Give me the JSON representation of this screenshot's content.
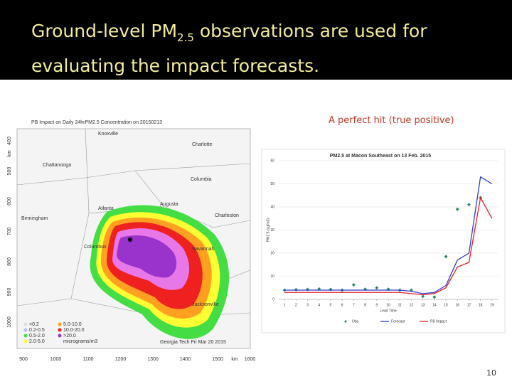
{
  "slide": {
    "title": [
      "Ground-level PM",
      "2.5",
      " observations are used for",
      "evaluating the impact forecasts."
    ],
    "caption": "A perfect hit (true positive)",
    "page_number": "10"
  },
  "map": {
    "title": "PB Impact on Daily 24hrPM2.5 Concentration on 20150213",
    "cities": [
      "Knoxville",
      "Charlotte",
      "Chattanooga",
      "Columbia",
      "Atlanta",
      "Augusta",
      "Birmingham",
      "Charleston",
      "Columbus",
      "Savannah",
      "Jacksonville"
    ],
    "y_axis_labels": [
      "400",
      "500",
      "600",
      "700",
      "800",
      "900",
      "1000"
    ],
    "y_unit": "km",
    "x_axis_labels": [
      "900",
      "1000",
      "1100",
      "1200",
      "1300",
      "1400",
      "1500",
      "1600"
    ],
    "x_unit": "km",
    "legend": [
      "<0.2",
      "0.2-0.5",
      "0.5-2.0",
      "2.0-5.0",
      "5.0-10.0",
      "10.0-20.0",
      ">20.0"
    ],
    "unit_label": "micrograms/m3",
    "footer": "Georgia Tech Fri Mar 20 2015"
  },
  "chart_data": {
    "type": "line",
    "title": "PM2.5 at Macon Southeast on 13 Feb. 2015",
    "x_label": "Lead Time",
    "y_label": "PM2.5 (ug/m3)",
    "x": [
      1,
      2,
      3,
      4,
      5,
      6,
      7,
      8,
      9,
      10,
      11,
      12,
      13,
      14,
      15,
      16,
      17,
      18,
      19
    ],
    "xlim": [
      0.5,
      19.5
    ],
    "xticks": [
      1,
      2,
      3,
      4,
      5,
      6,
      7,
      8,
      9,
      10,
      11,
      12,
      13,
      14,
      15,
      16,
      17,
      18,
      19
    ],
    "ylim": [
      0,
      60
    ],
    "yticks": [
      0,
      10,
      20,
      30,
      40,
      50,
      60
    ],
    "grid": true,
    "series": [
      {
        "name": "Obs.",
        "color": "#2e8b57",
        "style": "markers",
        "values": [
          4,
          4.2,
          4.3,
          4.5,
          4.3,
          4,
          6.3,
          4.4,
          5,
          4.4,
          4,
          4,
          1.3,
          1,
          18.5,
          39,
          41,
          44,
          null
        ]
      },
      {
        "name": "Forecast",
        "color": "#2b3bd0",
        "style": "line",
        "values": [
          4,
          4,
          4,
          4,
          4,
          4,
          4,
          4,
          4,
          4,
          4,
          3.5,
          2.5,
          3,
          6,
          17,
          20,
          53,
          50
        ]
      },
      {
        "name": "PB Impact",
        "color": "#e02020",
        "style": "line",
        "values": [
          3,
          3,
          3,
          3,
          3,
          3,
          3,
          3,
          3,
          3,
          3,
          2.5,
          2,
          2.5,
          5,
          14,
          16,
          44,
          35
        ]
      }
    ]
  }
}
